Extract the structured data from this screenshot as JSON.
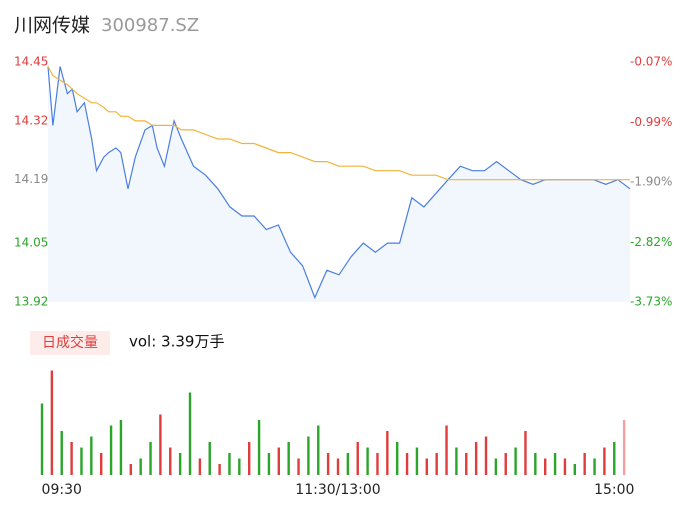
{
  "chart_data": [
    {
      "type": "line",
      "title": "川网传媒",
      "subtitle": "300987.SZ",
      "xlim": [
        0,
        240
      ],
      "x": [
        0,
        2,
        5,
        8,
        10,
        12,
        15,
        18,
        20,
        23,
        25,
        28,
        30,
        33,
        36,
        40,
        43,
        45,
        48,
        52,
        55,
        60,
        65,
        70,
        75,
        80,
        85,
        90,
        95,
        100,
        105,
        110,
        115,
        120,
        125,
        130,
        135,
        140,
        145,
        150,
        155,
        160,
        165,
        170,
        175,
        180,
        185,
        190,
        195,
        200,
        205,
        210,
        215,
        220,
        225,
        230,
        235,
        240
      ],
      "series": [
        {
          "color": "#4a7fe0",
          "values": [
            14.44,
            14.31,
            14.44,
            14.38,
            14.39,
            14.34,
            14.36,
            14.28,
            14.21,
            14.24,
            14.25,
            14.26,
            14.25,
            14.17,
            14.24,
            14.3,
            14.31,
            14.26,
            14.22,
            14.32,
            14.28,
            14.22,
            14.2,
            14.17,
            14.13,
            14.11,
            14.11,
            14.08,
            14.09,
            14.03,
            14.0,
            13.93,
            13.99,
            13.98,
            14.02,
            14.05,
            14.03,
            14.05,
            14.05,
            14.15,
            14.13,
            14.16,
            14.19,
            14.22,
            14.21,
            14.21,
            14.23,
            14.21,
            14.19,
            14.18,
            14.19,
            14.19,
            14.19,
            14.19,
            14.19,
            14.18,
            14.19,
            14.17
          ]
        },
        {
          "color": "#f0b43c",
          "values": [
            14.44,
            14.42,
            14.41,
            14.4,
            14.39,
            14.38,
            14.37,
            14.36,
            14.36,
            14.35,
            14.34,
            14.34,
            14.33,
            14.33,
            14.32,
            14.32,
            14.31,
            14.31,
            14.31,
            14.31,
            14.3,
            14.3,
            14.29,
            14.28,
            14.28,
            14.27,
            14.27,
            14.26,
            14.25,
            14.25,
            14.24,
            14.23,
            14.23,
            14.22,
            14.22,
            14.22,
            14.21,
            14.21,
            14.21,
            14.2,
            14.2,
            14.2,
            14.19,
            14.19,
            14.19,
            14.19,
            14.19,
            14.19,
            14.19,
            14.19,
            14.19,
            14.19,
            14.19,
            14.19,
            14.19,
            14.19,
            14.19,
            14.19
          ]
        }
      ],
      "ylim": [
        13.92,
        14.45
      ],
      "yticks": [
        14.45,
        14.32,
        14.19,
        14.05,
        13.92
      ],
      "ytick_colors": [
        "#e03c3c",
        "#e03c3c",
        "#888888",
        "#2aa52a",
        "#2aa52a"
      ],
      "y2lim": [
        -3.73,
        -0.07
      ],
      "y2ticks": [
        {
          "value": -0.07,
          "label": "-0.07%"
        },
        {
          "value": -0.99,
          "label": "-0.99%"
        },
        {
          "value": -1.9,
          "label": "-1.90%"
        },
        {
          "value": -2.82,
          "label": "-2.82%"
        },
        {
          "value": -3.73,
          "label": "-3.73%"
        }
      ],
      "y2tick_colors": [
        "#e03c3c",
        "#e03c3c",
        "#888888",
        "#2aa52a",
        "#2aa52a"
      ]
    },
    {
      "type": "bar",
      "title": "日成交量",
      "subtitle": "vol: 3.39万手",
      "xlim": [
        0,
        240
      ],
      "xticks": [
        {
          "value": 8,
          "label": "09:30"
        },
        {
          "value": 120,
          "label": "11:30/13:00"
        },
        {
          "value": 232,
          "label": "15:00"
        }
      ],
      "x": [
        0,
        4,
        8,
        12,
        16,
        20,
        24,
        28,
        32,
        36,
        40,
        44,
        48,
        52,
        56,
        60,
        64,
        68,
        72,
        76,
        80,
        84,
        88,
        92,
        96,
        100,
        104,
        108,
        112,
        116,
        120,
        124,
        128,
        132,
        136,
        140,
        144,
        148,
        152,
        156,
        160,
        164,
        168,
        172,
        176,
        180,
        184,
        188,
        192,
        196,
        200,
        204,
        208,
        212,
        216,
        220,
        224,
        228,
        232,
        236
      ],
      "values": [
        65,
        95,
        40,
        30,
        25,
        35,
        20,
        45,
        50,
        10,
        15,
        30,
        55,
        25,
        20,
        75,
        15,
        30,
        10,
        20,
        15,
        30,
        50,
        20,
        25,
        30,
        15,
        35,
        45,
        20,
        15,
        20,
        30,
        25,
        20,
        40,
        30,
        20,
        25,
        15,
        20,
        45,
        25,
        20,
        30,
        35,
        15,
        20,
        25,
        40,
        20,
        15,
        20,
        15,
        10,
        20,
        15,
        25,
        30,
        50
      ],
      "colors": [
        "#2aa52a",
        "#e03c3c",
        "#2aa52a",
        "#e03c3c",
        "#2aa52a",
        "#2aa52a",
        "#e03c3c",
        "#2aa52a",
        "#2aa52a",
        "#e03c3c",
        "#2aa52a",
        "#2aa52a",
        "#e03c3c",
        "#e03c3c",
        "#2aa52a",
        "#2aa52a",
        "#e03c3c",
        "#2aa52a",
        "#e03c3c",
        "#2aa52a",
        "#2aa52a",
        "#e03c3c",
        "#2aa52a",
        "#2aa52a",
        "#e03c3c",
        "#2aa52a",
        "#e03c3c",
        "#2aa52a",
        "#2aa52a",
        "#e03c3c",
        "#e03c3c",
        "#2aa52a",
        "#e03c3c",
        "#2aa52a",
        "#e03c3c",
        "#e03c3c",
        "#2aa52a",
        "#e03c3c",
        "#2aa52a",
        "#e03c3c",
        "#e03c3c",
        "#e03c3c",
        "#2aa52a",
        "#e03c3c",
        "#e03c3c",
        "#e03c3c",
        "#2aa52a",
        "#e03c3c",
        "#2aa52a",
        "#e03c3c",
        "#2aa52a",
        "#e03c3c",
        "#2aa52a",
        "#e03c3c",
        "#2aa52a",
        "#e03c3c",
        "#2aa52a",
        "#e03c3c",
        "#2aa52a",
        "#f4a0a0"
      ],
      "ylim": [
        0,
        100
      ]
    }
  ]
}
